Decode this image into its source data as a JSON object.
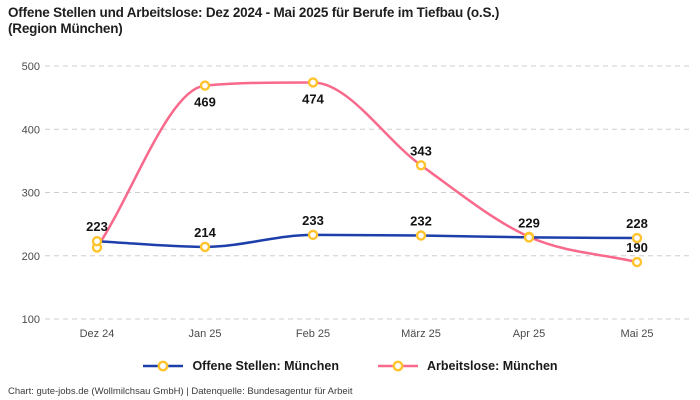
{
  "header": {
    "title_line1": "Offene Stellen und Arbeitslose: Dez 2024 - Mai 2025 für Berufe im Tiefbau (o.S.)",
    "title_line2": "(Region München)"
  },
  "chart_data": {
    "type": "line",
    "title": "Offene Stellen und Arbeitslose: Dez 2024 - Mai 2025 für Berufe im Tiefbau (o.S.) (Region München)",
    "categories": [
      "Dez 24",
      "Jan 25",
      "Feb 25",
      "März 25",
      "Apr 25",
      "Mai 25"
    ],
    "series": [
      {
        "name": "Offene Stellen: München",
        "color": "#1d3faa",
        "values": [
          223,
          214,
          233,
          232,
          229,
          228
        ],
        "label_positions": [
          "above",
          "above",
          "above",
          "above",
          "above",
          "above"
        ]
      },
      {
        "name": "Arbeitslose: München",
        "color": "#f8698b",
        "values": [
          213,
          469,
          474,
          343,
          230,
          190
        ],
        "label_positions": [
          null,
          "below",
          "below",
          "above",
          null,
          "above"
        ]
      }
    ],
    "xlabel": "",
    "ylabel": "",
    "ylim": [
      100,
      500
    ],
    "yticks": [
      100,
      200,
      300,
      400,
      500
    ],
    "grid": "horizontal-dashed",
    "gridline_color": "#cdcdcd",
    "legend_position": "bottom",
    "marker": {
      "shape": "ring",
      "fill": "#ffffff",
      "stroke": "#ffc32e"
    }
  },
  "footer": {
    "credit": "Chart: gute-jobs.de (Wollmilchsau GmbH) | Datenquelle: Bundesagentur für Arbeit"
  }
}
